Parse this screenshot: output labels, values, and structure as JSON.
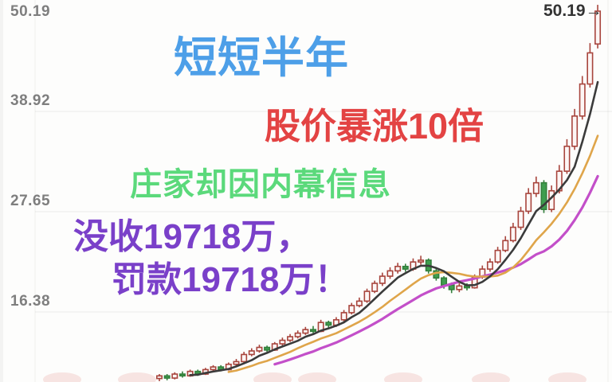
{
  "page": {
    "background": "#fdfdfc"
  },
  "axis": {
    "ticks": [
      {
        "text": "50.19"
      },
      {
        "text": "38.92"
      },
      {
        "text": "27.65"
      },
      {
        "text": "16.38"
      }
    ],
    "color": "#7e7e7e"
  },
  "price_marker": {
    "text": "50.19→",
    "color": "#333333"
  },
  "captions": [
    {
      "text": "短短半年",
      "color": "#4d9fe8"
    },
    {
      "text": "股价暴涨10倍",
      "color": "#e34343"
    },
    {
      "text": "庄家却因内幕信息",
      "color": "#5bd97b"
    },
    {
      "text": "没收19718万，",
      "color": "#7a40c9"
    },
    {
      "text": "罚款19718万！",
      "color": "#7a40c9"
    }
  ],
  "chart_data": {
    "type": "candlestick",
    "title": "",
    "xlabel": "",
    "ylabel": "",
    "y_ticks": [
      16.38,
      27.65,
      38.92,
      50.19
    ],
    "last_price": 50.19,
    "grid": true,
    "up_color": "#a8453d",
    "up_fill": "#fdf6f5",
    "down_color": "#337f3c",
    "down_fill": "#3f9e4f",
    "moving_averages": [
      {
        "name": "ma-short",
        "window": 5,
        "color": "#3b3b3b",
        "width": 2.6
      },
      {
        "name": "ma-mid",
        "window": 10,
        "color": "#dfa54a",
        "width": 2.6
      },
      {
        "name": "ma-long",
        "window": 16,
        "color": "#c34fc9",
        "width": 3.2
      }
    ],
    "ohlc": [
      [
        8.9,
        9.4,
        8.6,
        9.2
      ],
      [
        9.2,
        9.4,
        8.7,
        8.95
      ],
      [
        8.95,
        9.6,
        8.8,
        9.4
      ],
      [
        9.4,
        9.7,
        9.0,
        9.2
      ],
      [
        9.2,
        9.9,
        9.1,
        9.7
      ],
      [
        9.7,
        9.9,
        9.2,
        9.4
      ],
      [
        9.4,
        10.1,
        9.3,
        9.9
      ],
      [
        9.9,
        10.4,
        9.7,
        10.2
      ],
      [
        10.2,
        10.4,
        9.7,
        9.9
      ],
      [
        9.9,
        10.7,
        9.8,
        10.5
      ],
      [
        10.5,
        11.1,
        10.3,
        10.8
      ],
      [
        10.8,
        11.9,
        10.7,
        11.6
      ],
      [
        11.6,
        12.3,
        11.4,
        12.0
      ],
      [
        12.0,
        12.7,
        11.8,
        12.4
      ],
      [
        12.4,
        12.6,
        11.9,
        12.1
      ],
      [
        12.1,
        13.0,
        12.0,
        12.8
      ],
      [
        12.8,
        13.5,
        12.6,
        13.2
      ],
      [
        13.2,
        13.9,
        13.0,
        13.6
      ],
      [
        13.6,
        14.3,
        13.4,
        14.0
      ],
      [
        14.0,
        14.7,
        13.8,
        14.4
      ],
      [
        14.4,
        14.8,
        14.0,
        14.2
      ],
      [
        14.2,
        15.5,
        14.1,
        15.2
      ],
      [
        15.2,
        15.4,
        14.6,
        14.9
      ],
      [
        14.9,
        15.8,
        14.7,
        15.5
      ],
      [
        15.5,
        16.6,
        15.3,
        16.3
      ],
      [
        16.3,
        17.4,
        16.1,
        17.1
      ],
      [
        17.1,
        18.0,
        16.9,
        17.6
      ],
      [
        17.6,
        19.0,
        17.4,
        18.7
      ],
      [
        18.7,
        19.9,
        18.5,
        19.6
      ],
      [
        19.6,
        20.8,
        19.3,
        20.4
      ],
      [
        20.4,
        21.4,
        20.1,
        21.0
      ],
      [
        21.0,
        21.9,
        20.7,
        21.5
      ],
      [
        21.5,
        21.8,
        20.9,
        21.2
      ],
      [
        21.2,
        22.4,
        21.0,
        22.0
      ],
      [
        22.0,
        22.7,
        21.7,
        22.2
      ],
      [
        22.2,
        22.4,
        20.7,
        21.0
      ],
      [
        21.0,
        21.3,
        19.9,
        20.2
      ],
      [
        20.2,
        20.4,
        19.0,
        19.4
      ],
      [
        19.4,
        19.7,
        18.5,
        18.9
      ],
      [
        18.9,
        19.6,
        18.6,
        19.3
      ],
      [
        19.3,
        19.6,
        18.8,
        19.1
      ],
      [
        19.1,
        20.6,
        19.0,
        20.3
      ],
      [
        20.3,
        21.6,
        20.1,
        21.2
      ],
      [
        21.2,
        22.4,
        20.9,
        22.0
      ],
      [
        22.0,
        23.7,
        21.8,
        23.3
      ],
      [
        23.3,
        24.9,
        23.1,
        24.4
      ],
      [
        24.4,
        26.4,
        24.2,
        25.9
      ],
      [
        25.9,
        28.2,
        25.6,
        27.7
      ],
      [
        27.7,
        30.3,
        27.4,
        29.7
      ],
      [
        29.7,
        31.6,
        29.3,
        30.9
      ],
      [
        30.9,
        31.2,
        27.5,
        27.9
      ],
      [
        27.9,
        30.6,
        27.6,
        30.0
      ],
      [
        30.0,
        32.9,
        29.7,
        32.2
      ],
      [
        32.2,
        35.8,
        31.9,
        35.0
      ],
      [
        35.0,
        39.2,
        34.6,
        38.4
      ],
      [
        38.4,
        42.9,
        38.0,
        42.0
      ],
      [
        42.0,
        46.6,
        41.6,
        45.5
      ],
      [
        46.5,
        50.9,
        46.0,
        50.19
      ]
    ]
  }
}
